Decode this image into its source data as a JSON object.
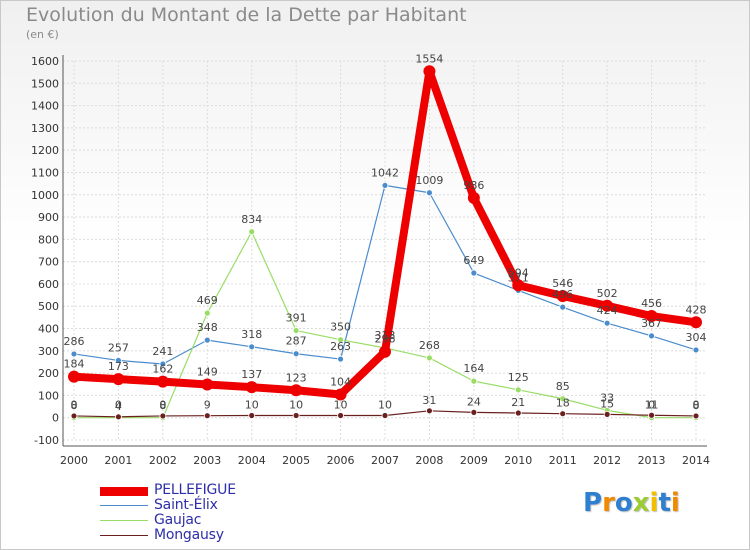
{
  "chart_data": {
    "type": "line",
    "title": "Evolution du Montant de la Dette par Habitant",
    "subtitle": "(en €)",
    "xlabel": "",
    "ylabel": "",
    "ylim": [
      -100,
      1600
    ],
    "yticks": [
      -100,
      0,
      100,
      200,
      300,
      400,
      500,
      600,
      700,
      800,
      900,
      1000,
      1100,
      1200,
      1300,
      1400,
      1500,
      1600
    ],
    "categories": [
      "2000",
      "2001",
      "2002",
      "2003",
      "2004",
      "2005",
      "2006",
      "2007",
      "2008",
      "2009",
      "2010",
      "2011",
      "2012",
      "2013",
      "2014"
    ],
    "grid": true,
    "legend_position": "bottom-left",
    "series": [
      {
        "name": "Saint-Élix",
        "color": "#4a8ccc",
        "values": [
          286,
          257,
          241,
          348,
          318,
          287,
          263,
          1042,
          1009,
          649,
          571,
          496,
          424,
          367,
          304
        ]
      },
      {
        "name": "Gaujac",
        "color": "#99dd66",
        "values": [
          0,
          0,
          0,
          469,
          834,
          391,
          350,
          313,
          268,
          164,
          125,
          85,
          33,
          0,
          0
        ]
      },
      {
        "name": "Mongausy",
        "color": "#6b2020",
        "values": [
          8,
          4,
          8,
          9,
          10,
          10,
          10,
          10,
          31,
          24,
          21,
          18,
          15,
          11,
          8
        ]
      },
      {
        "name": "PELLEFIGUE",
        "color": "#ee0000",
        "values": [
          184,
          173,
          162,
          149,
          137,
          123,
          104,
          296,
          1554,
          986,
          594,
          546,
          502,
          456,
          428
        ]
      }
    ],
    "labels": {
      "Saint-Élix": [
        "286",
        "257",
        "241",
        "348",
        "318",
        "287",
        "263",
        "1042",
        "1009",
        "649",
        "571",
        "496",
        "424",
        "367",
        "304"
      ],
      "Gaujac": [
        "0",
        "0",
        "0",
        "469",
        "834",
        "391",
        "350",
        "313",
        "268",
        "164",
        "125",
        "85",
        "33",
        "0",
        "0"
      ],
      "Mongausy": [
        "8",
        "4",
        "8",
        "9",
        "10",
        "10",
        "10",
        "10",
        "31",
        "24",
        "21",
        "18",
        "15",
        "11",
        "8"
      ],
      "PELLEFIGUE": [
        "184",
        "173",
        "162",
        "149",
        "137",
        "123",
        "104",
        "296",
        "1554",
        "986",
        "594",
        "546",
        "502",
        "456",
        "428"
      ]
    }
  },
  "legend": {
    "items": [
      {
        "label": "PELLEFIGUE",
        "color": "#ee0000"
      },
      {
        "label": "Saint-Élix",
        "color": "#4a8ccc"
      },
      {
        "label": "Gaujac",
        "color": "#99dd66"
      },
      {
        "label": "Mongausy",
        "color": "#6b2020"
      }
    ]
  },
  "brand": {
    "logo_text": "Proxiti",
    "letter_colors": [
      "#2f7fd0",
      "#f08a00",
      "#2f7fd0",
      "#9ccc33",
      "#f0c000",
      "#2f7fd0",
      "#f08a00"
    ]
  }
}
